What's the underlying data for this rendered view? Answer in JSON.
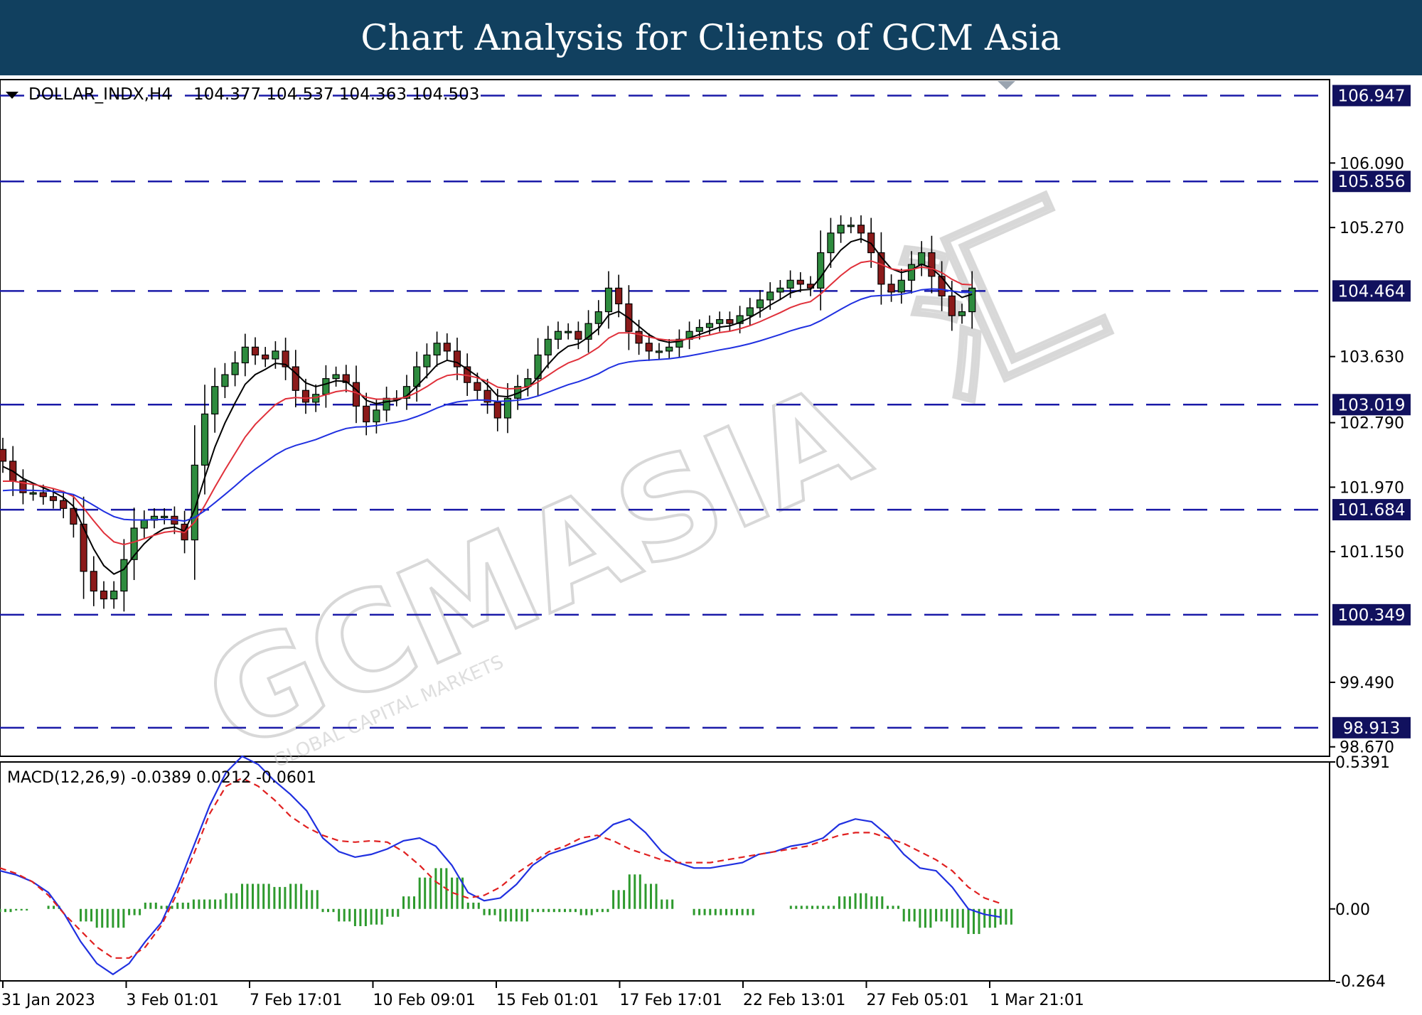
{
  "banner": {
    "title": "Chart Analysis for Clients of GCM Asia"
  },
  "colors": {
    "banner_bg": "#11405f",
    "level_line": "#1a1aa8",
    "bull_candle": "#2e8b3e",
    "bear_candle": "#8b1a1a",
    "ma_fast": "#000000",
    "ma_mid": "#e0303a",
    "ma_slow": "#2030e0",
    "macd_line": "#2030e0",
    "signal_line": "#e02020",
    "histogram": "#2e9a2e"
  },
  "watermark": {
    "brand": "GCMASIA",
    "chinese": "汇",
    "tagline": "GLOBAL CAPITAL MARKETS"
  },
  "chart_data": [
    {
      "type": "candlestick",
      "symbol_label": "DOLLAR_INDX,H4",
      "ohlc_label": "104.377 104.537 104.363 104.503",
      "ylim": [
        98.55,
        107.15
      ],
      "price_ticks": [
        "106.090",
        "105.270",
        "103.630",
        "102.790",
        "101.970",
        "101.150",
        "99.490",
        "98.670"
      ],
      "levels": [
        "106.947",
        "105.856",
        "104.464",
        "103.019",
        "101.684",
        "100.349",
        "98.913"
      ],
      "x_ticks": [
        "31 Jan 2023",
        "3 Feb 01:01",
        "7 Feb 17:01",
        "10 Feb 09:01",
        "15 Feb 01:01",
        "17 Feb 17:01",
        "22 Feb 13:01",
        "27 Feb 05:01",
        "1 Mar 21:01"
      ],
      "closes": [
        102.3,
        102.05,
        101.9,
        101.9,
        101.85,
        101.8,
        101.7,
        101.5,
        100.9,
        100.65,
        100.55,
        100.65,
        101.05,
        101.45,
        101.55,
        101.6,
        101.6,
        101.5,
        101.3,
        102.25,
        102.9,
        103.25,
        103.4,
        103.55,
        103.75,
        103.65,
        103.6,
        103.7,
        103.5,
        103.2,
        103.05,
        103.15,
        103.35,
        103.4,
        103.3,
        103.0,
        102.8,
        102.95,
        103.1,
        103.1,
        103.25,
        103.5,
        103.65,
        103.8,
        103.7,
        103.5,
        103.3,
        103.2,
        103.05,
        102.85,
        103.1,
        103.25,
        103.35,
        103.65,
        103.85,
        103.95,
        103.95,
        103.85,
        104.05,
        104.2,
        104.5,
        104.3,
        103.95,
        103.8,
        103.7,
        103.7,
        103.75,
        103.85,
        103.95,
        104.0,
        104.05,
        104.1,
        104.05,
        104.15,
        104.25,
        104.35,
        104.45,
        104.5,
        104.6,
        104.55,
        104.5,
        104.95,
        105.2,
        105.3,
        105.3,
        105.2,
        104.95,
        104.55,
        104.45,
        104.6,
        104.8,
        104.95,
        104.65,
        104.4,
        104.15,
        104.2,
        104.5
      ]
    },
    {
      "type": "macd",
      "label": "MACD(12,26,9) -0.0389 0.0212 -0.0601",
      "ylim": [
        -0.264,
        0.5391
      ],
      "y_ticks": [
        "0.5391",
        "0.00",
        "-0.264"
      ],
      "macd": [
        0.14,
        0.125,
        0.1,
        0.06,
        -0.02,
        -0.12,
        -0.2,
        -0.24,
        -0.2,
        -0.12,
        -0.05,
        0.08,
        0.23,
        0.38,
        0.5,
        0.56,
        0.53,
        0.47,
        0.42,
        0.36,
        0.26,
        0.21,
        0.19,
        0.2,
        0.22,
        0.25,
        0.26,
        0.23,
        0.16,
        0.06,
        0.03,
        0.04,
        0.09,
        0.16,
        0.2,
        0.22,
        0.24,
        0.26,
        0.31,
        0.33,
        0.28,
        0.21,
        0.17,
        0.15,
        0.15,
        0.16,
        0.17,
        0.2,
        0.21,
        0.23,
        0.24,
        0.26,
        0.31,
        0.33,
        0.32,
        0.27,
        0.2,
        0.15,
        0.14,
        0.08,
        0.0,
        -0.02,
        -0.03
      ],
      "signal": [
        0.15,
        0.13,
        0.1,
        0.05,
        -0.02,
        -0.08,
        -0.14,
        -0.18,
        -0.18,
        -0.14,
        -0.06,
        0.06,
        0.2,
        0.35,
        0.45,
        0.48,
        0.45,
        0.4,
        0.34,
        0.3,
        0.27,
        0.25,
        0.245,
        0.25,
        0.245,
        0.21,
        0.16,
        0.1,
        0.06,
        0.04,
        0.05,
        0.08,
        0.13,
        0.17,
        0.21,
        0.23,
        0.26,
        0.27,
        0.25,
        0.22,
        0.2,
        0.18,
        0.17,
        0.17,
        0.17,
        0.18,
        0.19,
        0.2,
        0.21,
        0.22,
        0.23,
        0.25,
        0.27,
        0.28,
        0.28,
        0.26,
        0.24,
        0.21,
        0.18,
        0.14,
        0.08,
        0.04,
        0.02
      ]
    }
  ]
}
